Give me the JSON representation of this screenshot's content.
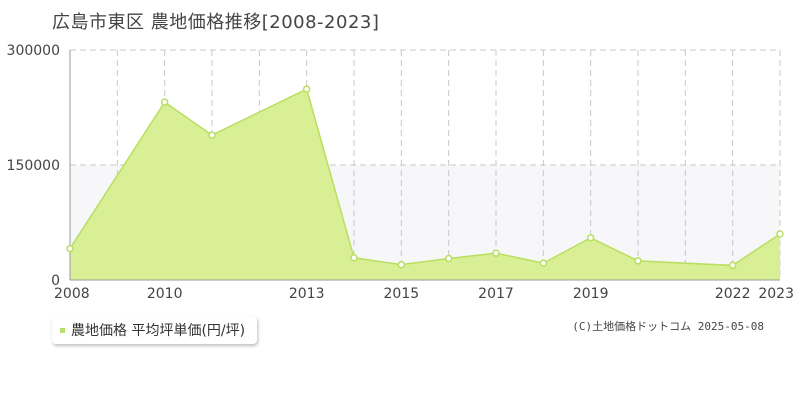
{
  "chart_data": {
    "type": "area",
    "title": "広島市東区 農地価格推移[2008-2023]",
    "x": [
      2008,
      2009,
      2010,
      2011,
      2012,
      2013,
      2014,
      2015,
      2016,
      2017,
      2018,
      2019,
      2020,
      2021,
      2022,
      2023
    ],
    "x_tick_labels": [
      "2008",
      "2010",
      "2013",
      "2015",
      "2017",
      "2019",
      "2022",
      "2023"
    ],
    "x_tick_values": [
      2008,
      2010,
      2013,
      2015,
      2017,
      2019,
      2022,
      2023
    ],
    "series": [
      {
        "name": "農地価格 平均坪単価(円/坪)",
        "values": [
          41000,
          232000,
          189000,
          249000,
          29000,
          20000,
          28000,
          35000,
          22000,
          55000,
          25000,
          19000,
          60000
        ],
        "x": [
          2008,
          2010,
          2011,
          2013,
          2014,
          2015,
          2016,
          2017,
          2018,
          2019,
          2020,
          2022,
          2023
        ]
      }
    ],
    "ylim": [
      0,
      300000
    ],
    "y_tick_labels": [
      "0",
      "150000",
      "300000"
    ],
    "y_tick_values": [
      0,
      150000,
      300000
    ],
    "colors": {
      "fill": "#d9ef95",
      "line": "#b9df60",
      "point_fill": "#ffffff",
      "grid": "#c8c8c8",
      "band": "#f7f7fa"
    },
    "grid": true,
    "legend_position": "bottom-left"
  },
  "legend": {
    "label": "農地価格 平均坪単価(円/坪)"
  },
  "credit": "(C)土地価格ドットコム 2025-05-08"
}
